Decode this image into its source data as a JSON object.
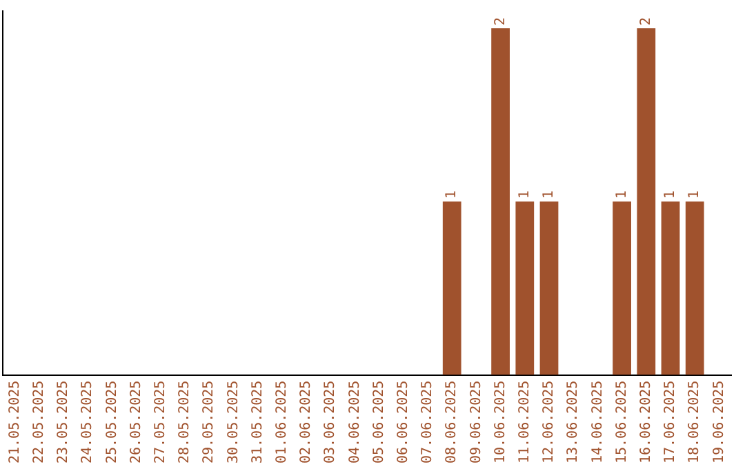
{
  "chart_data": {
    "type": "bar",
    "categories": [
      "21.05.2025",
      "22.05.2025",
      "23.05.2025",
      "24.05.2025",
      "25.05.2025",
      "26.05.2025",
      "27.05.2025",
      "28.05.2025",
      "29.05.2025",
      "30.05.2025",
      "31.05.2025",
      "01.06.2025",
      "02.06.2025",
      "03.06.2025",
      "04.06.2025",
      "05.06.2025",
      "06.06.2025",
      "07.06.2025",
      "08.06.2025",
      "09.06.2025",
      "10.06.2025",
      "11.06.2025",
      "12.06.2025",
      "13.06.2025",
      "14.06.2025",
      "15.06.2025",
      "16.06.2025",
      "17.06.2025",
      "18.06.2025",
      "19.06.2025"
    ],
    "values": [
      null,
      null,
      null,
      null,
      null,
      null,
      null,
      null,
      null,
      null,
      null,
      null,
      null,
      null,
      null,
      null,
      null,
      null,
      1,
      null,
      2,
      1,
      1,
      null,
      null,
      1,
      2,
      1,
      1,
      null
    ],
    "data_labels": true,
    "color": "#a0522d",
    "ylim": [
      0,
      2.1
    ],
    "tick_labels": "x",
    "grid": false,
    "legend": false
  }
}
